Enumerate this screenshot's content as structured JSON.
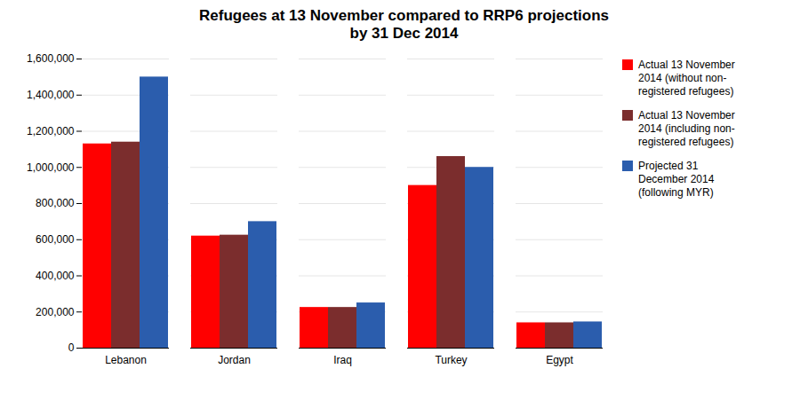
{
  "chart_data": {
    "type": "bar",
    "title": "Refugees at 13 November compared to RRP6 projections\nby 31 Dec 2014",
    "categories": [
      "Lebanon",
      "Jordan",
      "Iraq",
      "Turkey",
      "Egypt"
    ],
    "series": [
      {
        "name": "Actual 13 November\n2014 (without non-\nregistered refugees)",
        "color": "#FF0000",
        "values": [
          1130000,
          620000,
          225000,
          900000,
          140000
        ]
      },
      {
        "name": "Actual 13 November\n2014 (including non-\nregistered refugees)",
        "color": "#7B2D2D",
        "values": [
          1140000,
          625000,
          225000,
          1060000,
          140000
        ]
      },
      {
        "name": "Projected 31\nDecember 2014\n(following MYR)",
        "color": "#2B5DAD",
        "values": [
          1500000,
          700000,
          250000,
          1000000,
          145000
        ]
      }
    ],
    "ylim": [
      0,
      1600000
    ],
    "yticks": [
      0,
      {
        "value": 200000,
        "label": "200,000"
      },
      {
        "value": 400000,
        "label": "400,000"
      },
      {
        "value": 600000,
        "label": "600,000"
      },
      {
        "value": 800000,
        "label": "800,000"
      },
      {
        "value": 1000000,
        "label": "1,000,000"
      },
      {
        "value": 1200000,
        "label": "1,200,000"
      },
      {
        "value": 1400000,
        "label": "1,400,000"
      },
      {
        "value": 1600000,
        "label": "1,600,000"
      }
    ],
    "grid": true,
    "legend": "right"
  }
}
